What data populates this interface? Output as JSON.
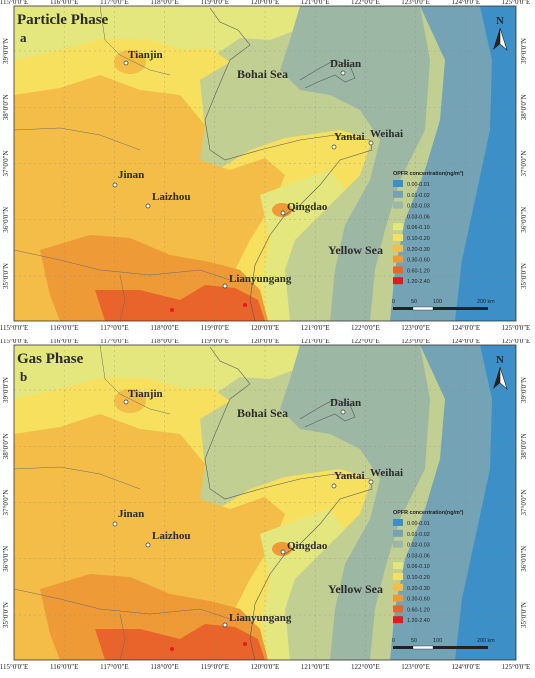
{
  "legend": {
    "title": "OPFR concentration(ng/m³)",
    "classes": [
      {
        "label": "0.00-0.01",
        "color": "#3d8fc7"
      },
      {
        "label": "0.01-0.02",
        "color": "#74a3b6"
      },
      {
        "label": "0.02-0.03",
        "color": "#9cb7a4"
      },
      {
        "label": "0.03-0.06",
        "color": "#c2cf93"
      },
      {
        "label": "0.06-0.10",
        "color": "#e4e77d"
      },
      {
        "label": "0.10-0.20",
        "color": "#f6e05e"
      },
      {
        "label": "0.20-0.30",
        "color": "#f3bd47"
      },
      {
        "label": "0.30-0.60",
        "color": "#ee9a37"
      },
      {
        "label": "0.60-1.20",
        "color": "#e8642a"
      },
      {
        "label": "1.20-2.40",
        "color": "#e41a1c"
      }
    ]
  },
  "scale": {
    "labels": [
      "0",
      "50",
      "100",
      "200 km"
    ]
  },
  "north": "N",
  "x_ticks": [
    "115°0'0\"E",
    "116°0'0\"E",
    "117°0'0\"E",
    "118°0'0\"E",
    "119°0'0\"E",
    "120°0'0\"E",
    "121°0'0\"E",
    "122°0'0\"E",
    "123°0'0\"E",
    "124°0'0\"E",
    "125°0'0\"E"
  ],
  "y_ticks": [
    "35°0'0\"N",
    "36°0'0\"N",
    "37°0'0\"N",
    "38°0'0\"N",
    "39°0'0\"N"
  ],
  "places": {
    "tianjin": "Tianjin",
    "dalian": "Dalian",
    "bohai": "Bohai Sea",
    "yantai": "Yantai",
    "weihai": "Weihai",
    "jinan": "Jinan",
    "laizhou": "Laizhou",
    "qingdao": "Qingdao",
    "yellow": "Yellow Sea",
    "lianyungang": "Lianyungang"
  },
  "panels": [
    {
      "title": "Particle Phase",
      "letter": "a"
    },
    {
      "title": "Gas Phase",
      "letter": "b"
    }
  ]
}
